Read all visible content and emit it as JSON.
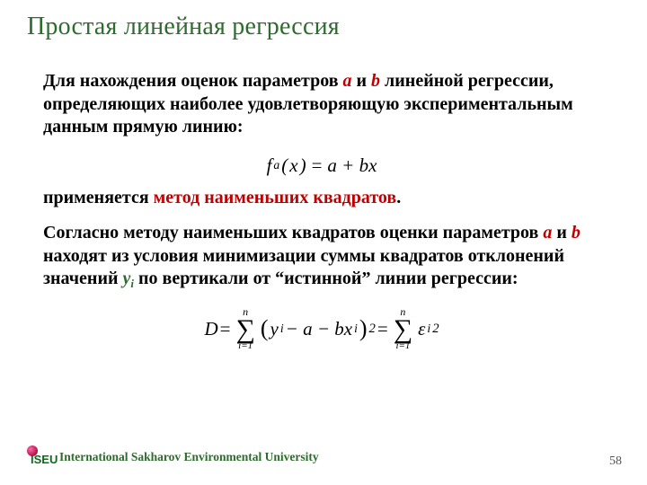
{
  "title": "Простая линейная регрессия",
  "para1_pre": "Для нахождения оценок параметров ",
  "a": "a",
  "and": " и ",
  "b": "b",
  "para1_post": " линейной регрессии, определяющих наиболее удовлетворяющую экспериментальным данным прямую линию:",
  "eq1": {
    "lhs_f": "f",
    "lhs_sub": "a",
    "lhs_x": "x",
    "rhs": "a + bx"
  },
  "para2_pre": "применяется ",
  "para2_red": "метод наименьших квадратов",
  "para2_post": ".",
  "para3_pre": "Согласно методу наименьших квадратов оценки параметров ",
  "para3_mid": " находят из условия минимизации суммы квадратов отклонений значений ",
  "yi": "y",
  "yi_sub": "i",
  "para3_post": " по вертикали от “истинной” линии регрессии:",
  "eq2": {
    "D": "D",
    "eq": " = ",
    "ub": "n",
    "lb": "i=1",
    "term_y": "y",
    "term_i": "i",
    "term_mid": " − a − bx",
    "exp": "2",
    "eps": "ε"
  },
  "footer": {
    "logo_txt": "ISEU",
    "university": "International Sakharov Environmental University"
  },
  "page": "58",
  "colors": {
    "title": "#2e6b2e",
    "highlight": "#c00000",
    "text": "#000000"
  }
}
